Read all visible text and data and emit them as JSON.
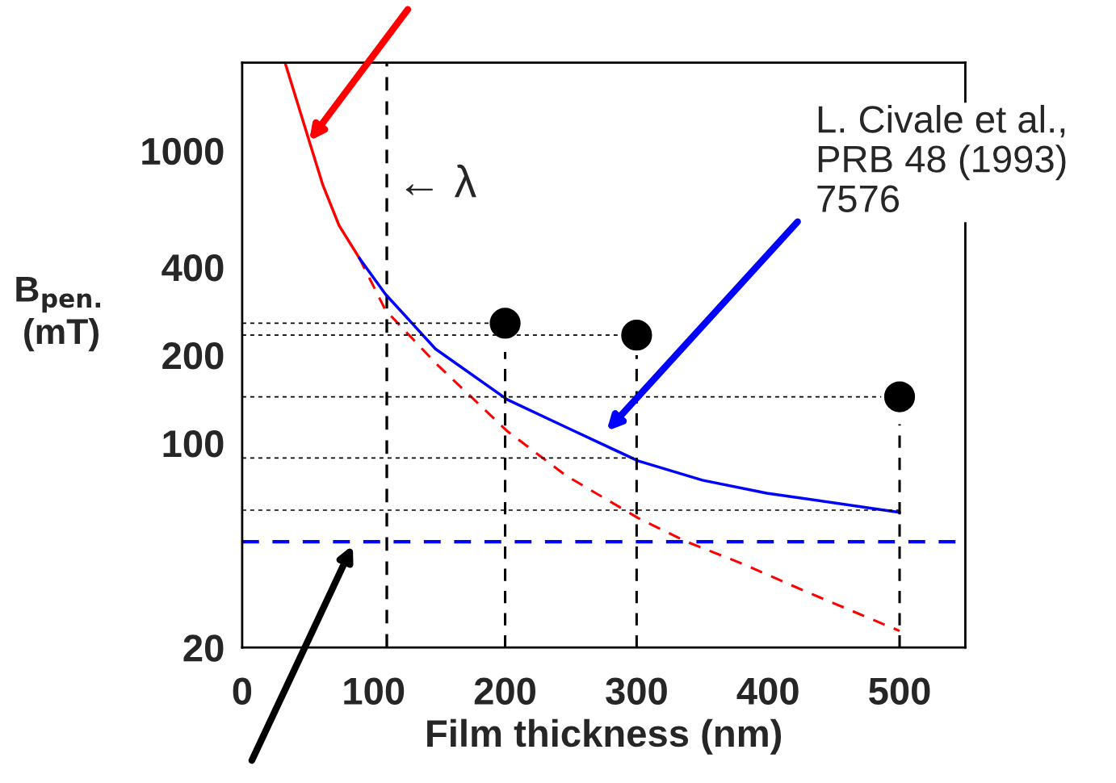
{
  "chart_data": {
    "type": "line",
    "xlabel": "Film thickness (nm)",
    "ylabel": "B$_{pen.}$\n(mT)",
    "xlim": [
      0,
      550
    ],
    "xticks": [
      0,
      100,
      200,
      300,
      400,
      500
    ],
    "ylim": [
      20,
      2000
    ],
    "yticks": [
      20,
      100,
      200,
      400,
      1000
    ],
    "log": "y",
    "grid": false,
    "legend": false,
    "series": [
      {
        "color": "#ff0000",
        "line_style": "solid",
        "x": [
          32.6,
          51,
          61.4,
          73.7,
          89
        ],
        "values": [
          2000,
          1079,
          762,
          555,
          430
        ]
      },
      {
        "color": "#ff0000",
        "line_style": "dashed",
        "x": [
          89,
          109,
          147,
          201.5,
          246,
          301,
          338,
          381,
          430,
          500
        ],
        "values": [
          430,
          285,
          188,
          110,
          77.6,
          55.5,
          46,
          38.6,
          30.9,
          22.8
        ]
      },
      {
        "color": "#0000ff",
        "line_style": "solid",
        "x": [
          89,
          109,
          147,
          201.5,
          246,
          301,
          350,
          399,
          500
        ],
        "values": [
          430,
          323,
          210,
          141,
          113.5,
          87,
          74.7,
          67.4,
          58
        ]
      },
      {
        "color": "#000000",
        "line_style": "dotted",
        "x": [
          0,
          188
        ],
        "values": [
          257,
          257
        ]
      },
      {
        "color": "#000000",
        "line_style": "dotted",
        "x": [
          0,
          288
        ],
        "values": [
          234,
          234
        ]
      },
      {
        "color": "#000000",
        "line_style": "dotted",
        "x": [
          0,
          486
        ],
        "values": [
          144,
          144
        ]
      },
      {
        "color": "#000000",
        "line_style": "dotted",
        "x": [
          0,
          300
        ],
        "values": [
          89,
          89
        ]
      },
      {
        "color": "#000000",
        "line_style": "dotted",
        "x": [
          0,
          500
        ],
        "values": [
          59,
          59
        ]
      },
      {
        "color": "#000000",
        "line_style": "dashed",
        "x": [
          200,
          200
        ],
        "values": [
          20,
          205
        ]
      },
      {
        "color": "#000000",
        "line_style": "dashed",
        "x": [
          300,
          300
        ],
        "values": [
          20,
          200
        ]
      },
      {
        "color": "#000000",
        "line_style": "dashed",
        "x": [
          500,
          500
        ],
        "values": [
          20,
          116
        ]
      },
      {
        "type": "scatter",
        "color": "#000000",
        "marker": "circle",
        "x": [
          200,
          300,
          500
        ],
        "values": [
          257,
          234,
          144
        ]
      }
    ],
    "ref_lines": [
      {
        "axis": "x",
        "value": 110,
        "color": "#000000",
        "line_style": "dashed"
      },
      {
        "axis": "y",
        "value": 46,
        "color": "#0000ff",
        "line_style": "dashed"
      }
    ],
    "annotations": [
      "← λ",
      "L. Civale et al.,\nPRB 48 (1993)\n7576"
    ]
  }
}
